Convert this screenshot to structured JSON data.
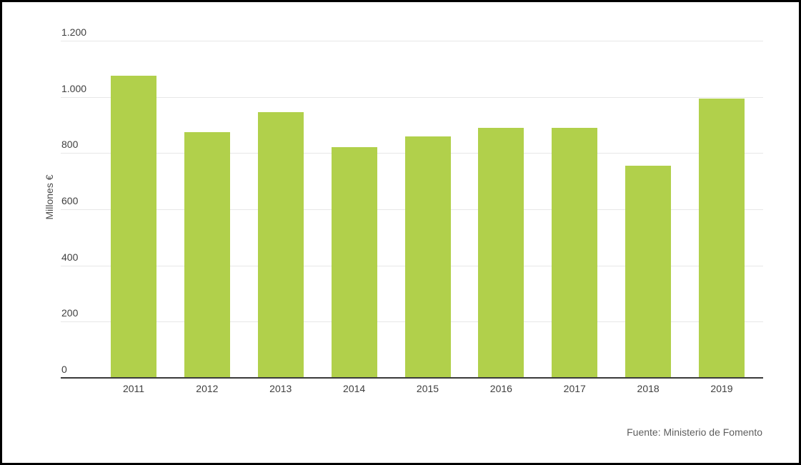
{
  "chart_data": {
    "type": "bar",
    "categories": [
      "2011",
      "2012",
      "2013",
      "2014",
      "2015",
      "2016",
      "2017",
      "2018",
      "2019"
    ],
    "values": [
      1075,
      875,
      945,
      820,
      860,
      890,
      890,
      755,
      995
    ],
    "ylabel": "Millones €",
    "xlabel": "",
    "ylim": [
      0,
      1200
    ],
    "yticks": [
      0,
      200,
      400,
      600,
      800,
      1000,
      1200
    ],
    "ytick_labels": [
      "0",
      "200",
      "400",
      "600",
      "800",
      "1.000",
      "1.200"
    ],
    "grid": true,
    "legend": "none",
    "source": "Fuente: Ministerio de Fomento",
    "colors": {
      "bar": "#b1d04b",
      "gridline": "#e7e7e7",
      "axis_line": "#3a3a3a",
      "tick_text": "#3f3f3f",
      "source_text": "#5e5e5e",
      "frame_border": "#000000"
    }
  }
}
